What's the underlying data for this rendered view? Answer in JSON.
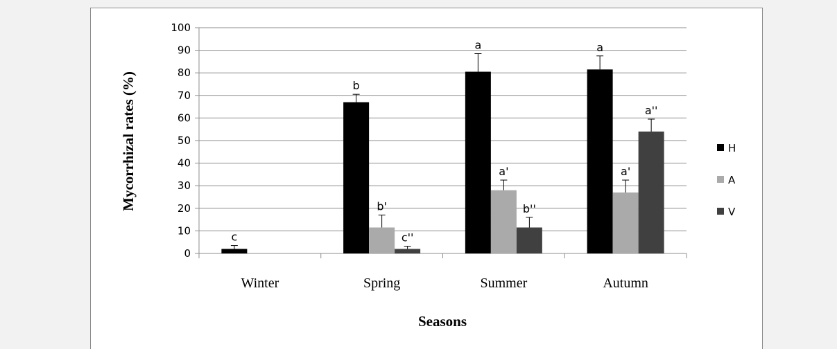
{
  "chart_data": {
    "type": "bar",
    "categories": [
      "Winter",
      "Spring",
      "Summer",
      "Autumn"
    ],
    "series": [
      {
        "name": "H",
        "color": "#000000",
        "values": [
          2,
          67,
          80.5,
          81.5
        ],
        "errors": [
          1.5,
          3.5,
          8,
          6
        ],
        "labels": [
          "c",
          "b",
          "a",
          "a"
        ]
      },
      {
        "name": "A",
        "color": "#aaaaaa",
        "values": [
          0,
          11.5,
          28,
          27
        ],
        "errors": [
          0,
          5.5,
          4.5,
          5.5
        ],
        "labels": [
          "",
          "b'",
          "a'",
          "a'"
        ]
      },
      {
        "name": "V",
        "color": "#404040",
        "values": [
          0,
          2,
          11.5,
          54
        ],
        "errors": [
          0,
          1.2,
          4.5,
          5.5
        ],
        "labels": [
          "",
          "c''",
          "b''",
          "a''"
        ]
      }
    ],
    "yticks": [
      "0",
      "10",
      "20",
      "30",
      "40",
      "50",
      "60",
      "70",
      "80",
      "90",
      "100"
    ],
    "ylim": [
      0,
      100
    ],
    "xlabel": "Seasons",
    "ylabel": "Mycorrhizal rates  (%)",
    "grid": true,
    "legend_position": "right"
  }
}
